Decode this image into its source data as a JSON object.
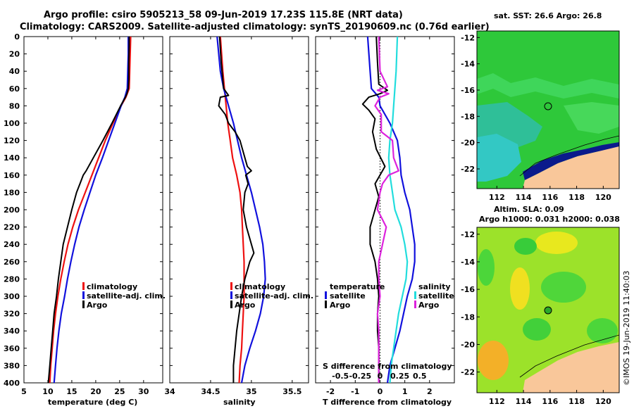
{
  "header": {
    "title_line1": "Argo profile: csiro 5905213_58 09-Jun-2019 17.23S 115.8E (NRT data)",
    "title_line2": "Climatology: CARS2009. Satellite-adjusted climatology: synTS_20190609.nc (0.76d earlier)"
  },
  "colors": {
    "climatology": "#ee1111",
    "satellite": "#1111dd",
    "argo": "#000000",
    "s_sat": "#22dddd",
    "s_argo": "#dd22dd",
    "land": "#f9c79a"
  },
  "chart_data": [
    {
      "type": "line",
      "id": "temperature",
      "xlabel": "temperature (deg C)",
      "ylabel": "",
      "xlim": [
        5,
        34
      ],
      "ylim": [
        400,
        0
      ],
      "xticks": [
        5,
        10,
        15,
        20,
        25,
        30
      ],
      "yticks": [
        0,
        20,
        40,
        60,
        80,
        100,
        120,
        140,
        160,
        180,
        200,
        220,
        240,
        260,
        280,
        300,
        320,
        340,
        360,
        380,
        400
      ],
      "legend": [
        "climatology",
        "satellite-adj. clim.",
        "Argo"
      ],
      "series": [
        {
          "name": "climatology",
          "color": "climatology",
          "depth": [
            0,
            20,
            40,
            60,
            70,
            80,
            100,
            120,
            140,
            160,
            180,
            200,
            220,
            240,
            260,
            280,
            300,
            320,
            340,
            360,
            380,
            400
          ],
          "values": [
            27.3,
            27.2,
            27.1,
            27.0,
            26.3,
            25.3,
            23.6,
            22.0,
            20.6,
            19.2,
            17.8,
            16.4,
            15.2,
            14.2,
            13.4,
            12.7,
            12.1,
            11.6,
            11.2,
            10.9,
            10.6,
            10.4
          ]
        },
        {
          "name": "satellite-adj. clim.",
          "color": "satellite",
          "depth": [
            0,
            20,
            40,
            60,
            70,
            80,
            100,
            120,
            140,
            160,
            180,
            200,
            220,
            240,
            260,
            280,
            300,
            320,
            340,
            360,
            380,
            400
          ],
          "values": [
            26.8,
            26.8,
            26.7,
            26.6,
            26.1,
            25.3,
            24.0,
            22.7,
            21.4,
            20.0,
            18.8,
            17.6,
            16.5,
            15.6,
            14.8,
            14.1,
            13.5,
            12.8,
            12.3,
            11.9,
            11.6,
            11.3
          ]
        },
        {
          "name": "Argo",
          "color": "argo",
          "depth": [
            0,
            10,
            30,
            50,
            60,
            66,
            70,
            80,
            100,
            120,
            140,
            155,
            160,
            170,
            180,
            200,
            220,
            240,
            260,
            280,
            300,
            320,
            340,
            360,
            380,
            400
          ],
          "values": [
            27.0,
            27.0,
            26.9,
            26.9,
            26.8,
            26.5,
            26.2,
            25.2,
            23.4,
            21.5,
            19.5,
            18.0,
            17.4,
            16.7,
            16.0,
            15.0,
            14.1,
            13.2,
            12.7,
            12.2,
            11.8,
            11.3,
            11.0,
            10.7,
            10.4,
            10.1
          ]
        }
      ]
    },
    {
      "type": "line",
      "id": "salinity",
      "xlabel": "salinity",
      "xlim": [
        34,
        35.7
      ],
      "ylim": [
        400,
        0
      ],
      "xticks": [
        34,
        34.5,
        35,
        35.5
      ],
      "xticklabels": [
        "34",
        "34.5",
        "35",
        "35.5"
      ],
      "legend": [
        "climatology",
        "satellite-adj. clim.",
        "Argo"
      ],
      "series": [
        {
          "name": "climatology",
          "color": "climatology",
          "depth": [
            0,
            40,
            60,
            80,
            100,
            120,
            140,
            160,
            180,
            200,
            220,
            240,
            260,
            280,
            300,
            320,
            340,
            360,
            380,
            400
          ],
          "values": [
            34.62,
            34.65,
            34.67,
            34.69,
            34.71,
            34.74,
            34.77,
            34.82,
            34.86,
            34.88,
            34.89,
            34.9,
            34.91,
            34.91,
            34.91,
            34.9,
            34.89,
            34.88,
            34.86,
            34.85
          ]
        },
        {
          "name": "satellite-adj. clim.",
          "color": "satellite",
          "depth": [
            0,
            40,
            60,
            80,
            100,
            120,
            140,
            160,
            180,
            200,
            220,
            240,
            260,
            280,
            300,
            320,
            340,
            360,
            380,
            400
          ],
          "values": [
            34.58,
            34.62,
            34.66,
            34.72,
            34.78,
            34.83,
            34.88,
            34.94,
            35.0,
            35.05,
            35.1,
            35.14,
            35.16,
            35.17,
            35.15,
            35.11,
            35.05,
            34.98,
            34.92,
            34.88
          ]
        },
        {
          "name": "Argo",
          "color": "argo",
          "depth": [
            0,
            30,
            60,
            68,
            70,
            80,
            90,
            100,
            110,
            120,
            140,
            150,
            155,
            160,
            170,
            180,
            200,
            220,
            240,
            250,
            260,
            280,
            300,
            320,
            340,
            360,
            380,
            400
          ],
          "values": [
            34.61,
            34.63,
            34.66,
            34.72,
            34.62,
            34.6,
            34.68,
            34.72,
            34.8,
            34.86,
            34.92,
            34.95,
            35.0,
            34.93,
            34.96,
            34.92,
            34.9,
            34.94,
            35.0,
            35.03,
            34.98,
            34.92,
            34.88,
            34.85,
            34.82,
            34.8,
            34.78,
            34.78
          ]
        }
      ]
    },
    {
      "type": "line",
      "id": "difference",
      "xlabel": "T difference from climatology",
      "xlabel_top": "S difference from climatology",
      "xlim": [
        -2.6,
        3
      ],
      "ylim": [
        400,
        0
      ],
      "xticks": [
        -2,
        -1,
        0,
        1,
        2
      ],
      "xticklabels_s": [
        "-0.5",
        "-0.25",
        "0",
        "0.25",
        "0.5"
      ],
      "legend_left_title": "temperature",
      "legend_right_title": "salinity",
      "legend_left": [
        "satellite",
        "Argo"
      ],
      "legend_right": [
        "satellite",
        "Argo"
      ],
      "series": [
        {
          "name": "temperature satellite",
          "color": "satellite",
          "depth": [
            0,
            40,
            60,
            70,
            80,
            100,
            120,
            140,
            160,
            180,
            200,
            220,
            240,
            260,
            280,
            300,
            320,
            340,
            360,
            380,
            400
          ],
          "values": [
            -0.5,
            -0.4,
            -0.35,
            -0.05,
            0.0,
            0.4,
            0.7,
            0.8,
            0.85,
            1.0,
            1.2,
            1.3,
            1.4,
            1.4,
            1.3,
            1.1,
            0.95,
            0.8,
            0.6,
            0.4,
            0.3
          ]
        },
        {
          "name": "temperature Argo",
          "color": "argo",
          "depth": [
            0,
            30,
            55,
            62,
            66,
            70,
            78,
            85,
            95,
            110,
            130,
            150,
            170,
            185,
            200,
            220,
            240,
            260,
            280,
            300,
            320,
            340,
            360,
            380,
            400
          ],
          "values": [
            -0.15,
            -0.1,
            -0.05,
            0.3,
            0.0,
            -0.45,
            -0.7,
            -0.45,
            -0.2,
            -0.3,
            -0.15,
            0.2,
            -0.2,
            -0.05,
            -0.2,
            -0.4,
            -0.4,
            -0.2,
            -0.1,
            -0.05,
            -0.1,
            -0.1,
            -0.05,
            -0.05,
            -0.05
          ]
        },
        {
          "name": "salinity satellite",
          "color": "s_sat",
          "depth": [
            0,
            40,
            80,
            100,
            120,
            140,
            160,
            180,
            200,
            220,
            240,
            260,
            280,
            300,
            320,
            340,
            360,
            380,
            400
          ],
          "values": [
            0.7,
            0.65,
            0.55,
            0.5,
            0.4,
            0.35,
            0.4,
            0.5,
            0.6,
            0.85,
            1.0,
            1.1,
            1.05,
            0.9,
            0.75,
            0.65,
            0.55,
            0.45,
            0.4
          ]
        },
        {
          "name": "salinity Argo",
          "color": "s_argo",
          "depth": [
            0,
            40,
            58,
            62,
            66,
            70,
            80,
            90,
            110,
            120,
            140,
            155,
            160,
            170,
            180,
            200,
            220,
            240,
            260,
            280,
            300,
            320,
            340,
            360,
            380,
            400
          ],
          "values": [
            -0.05,
            0.0,
            0.3,
            -0.1,
            0.35,
            0.0,
            -0.2,
            0.05,
            0.05,
            0.5,
            0.55,
            0.75,
            0.35,
            0.1,
            0.0,
            -0.1,
            0.25,
            0.1,
            -0.05,
            -0.05,
            0.0,
            -0.1,
            -0.05,
            -0.05,
            -0.05,
            -0.05
          ]
        }
      ]
    },
    {
      "type": "heatmap",
      "id": "sst_map",
      "title": "sat. SST: 26.6 Argo: 26.8",
      "xticks": [
        112,
        114,
        116,
        118,
        120
      ],
      "yticks": [
        -12,
        -14,
        -16,
        -18,
        -20,
        -22
      ],
      "xlim": [
        110.5,
        121.2
      ],
      "ylim": [
        -23.5,
        -11.5
      ],
      "argo_lon": 115.8,
      "argo_lat": -17.23
    },
    {
      "type": "heatmap",
      "id": "sla_map",
      "title_line1": "Altim. SLA: 0.09",
      "title_line2": "Argo h1000: 0.031 h2000: 0.038",
      "xticks": [
        112,
        114,
        116,
        118,
        120
      ],
      "yticks": [
        -12,
        -14,
        -16,
        -18,
        -20,
        -22
      ],
      "xlim": [
        110.5,
        121.2
      ],
      "ylim": [
        -23.5,
        -11.5
      ],
      "argo_lon": 115.8,
      "argo_lat": -17.23
    }
  ],
  "footer": {
    "credit": "©IMOS 19-Jun-2019 11:40:03"
  }
}
